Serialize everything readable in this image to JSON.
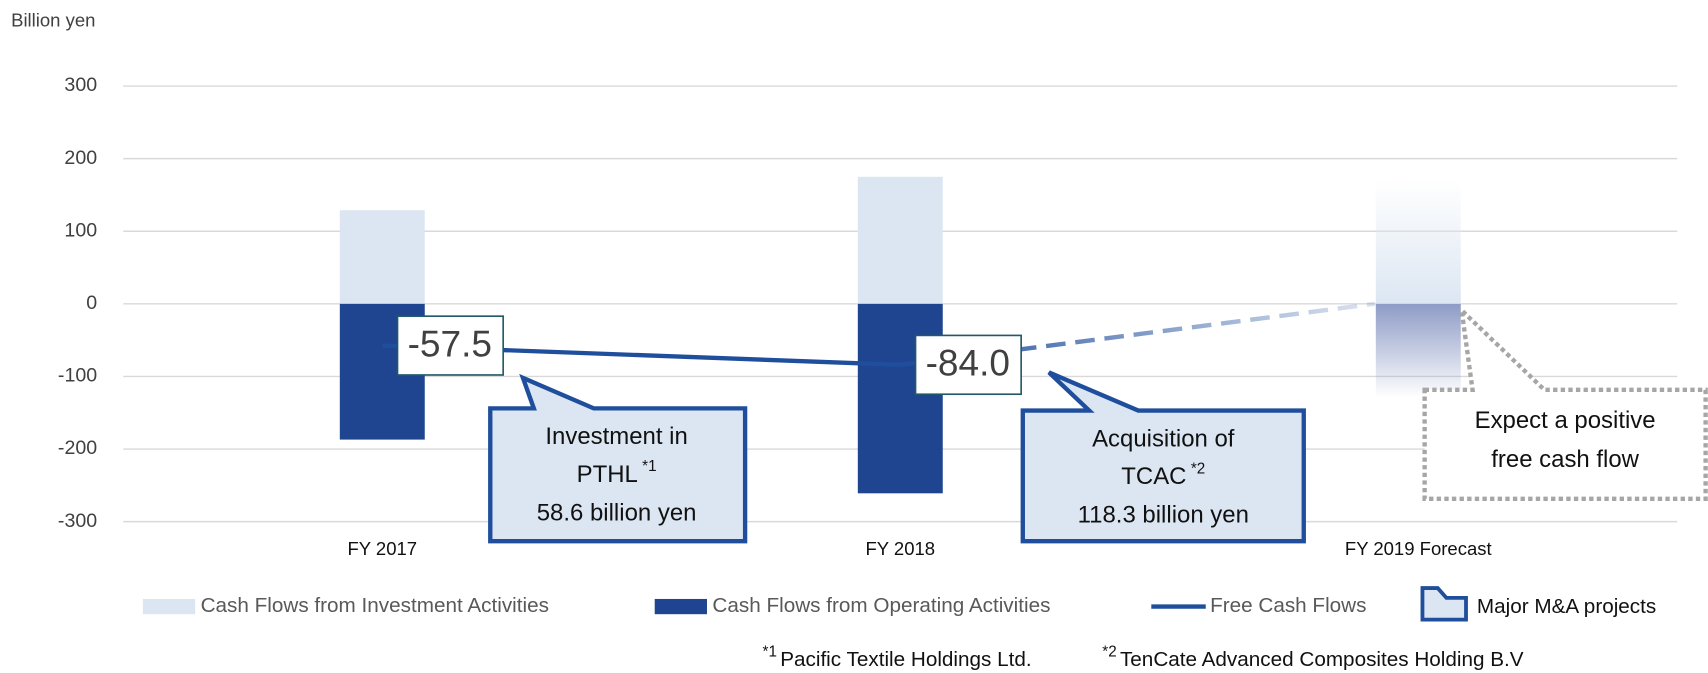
{
  "chart_data": {
    "type": "bar",
    "y_label": "Billion yen",
    "categories": [
      "FY 2017",
      "FY 2018",
      "FY 2019 Forecast"
    ],
    "series": [
      {
        "name": "Cash Flows from Investment Activities",
        "color": "#dce6f2",
        "values": [
          129,
          175,
          170
        ]
      },
      {
        "name": "Cash Flows from Operating Activities",
        "color": "#1f4590",
        "values": [
          -187,
          -261,
          -129
        ]
      },
      {
        "name": "Free Cash Flows",
        "type": "line",
        "color": "#1f4e9c",
        "values": [
          -57.5,
          -84.0,
          0
        ],
        "value_labels": [
          "-57.5",
          "-84.0",
          null
        ]
      }
    ],
    "ylim": [
      -300,
      300
    ],
    "yticks": [
      -300,
      -200,
      -100,
      0,
      100,
      200,
      300
    ],
    "grid": true,
    "legend": "bottom",
    "legend_extra": "Major M&A projects",
    "annotations": [
      {
        "lines": [
          "Investment in",
          "PTHL",
          "58.6 billion yen"
        ],
        "sup": "*1"
      },
      {
        "lines": [
          "Acquisition of",
          "TCAC",
          "118.3 billion yen"
        ],
        "sup": "*2"
      },
      {
        "lines": [
          "Expect a positive",
          "free cash flow"
        ]
      }
    ],
    "footnotes": [
      {
        "mark": "*1",
        "text": "Pacific Textile Holdings Ltd."
      },
      {
        "mark": "*2",
        "text": "TenCate Advanced Composites Holding B.V"
      }
    ]
  }
}
